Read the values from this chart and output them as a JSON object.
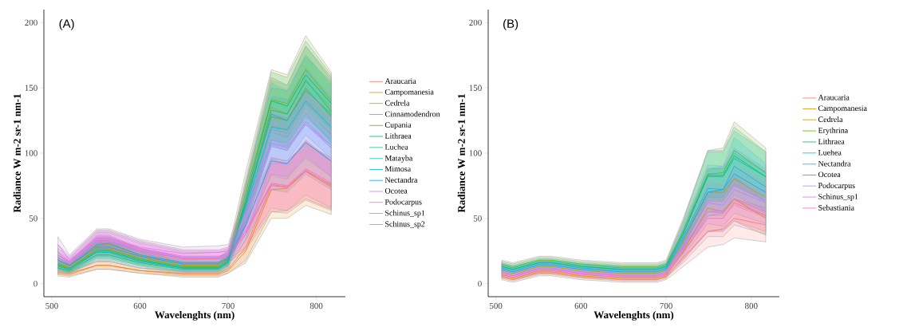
{
  "chart_data": [
    {
      "type": "line",
      "title": "(A)",
      "xlabel": "Wavelenghts (nm)",
      "ylabel": "Radiance W m-2 sr-1 nm-1",
      "legend": "right",
      "x": [
        507,
        520,
        551,
        565,
        600,
        649,
        689,
        700,
        720,
        749,
        767,
        788,
        817
      ],
      "xlim": [
        491,
        833
      ],
      "ylim": [
        -10,
        210
      ],
      "xticks": [
        500,
        600,
        700,
        800
      ],
      "yticks": [
        0,
        50,
        100,
        150,
        200
      ],
      "series": [
        {
          "name": "Araucaria",
          "color": "#f8766d",
          "values": [
            9,
            8,
            14,
            14,
            10,
            8,
            8,
            11,
            28,
            75,
            74,
            87,
            75
          ],
          "lower": [
            7,
            6,
            11,
            11,
            8,
            6,
            6,
            8,
            18,
            55,
            56,
            65,
            57
          ],
          "upper": [
            11,
            10,
            17,
            17,
            12,
            10,
            10,
            14,
            38,
            95,
            92,
            109,
            93
          ]
        },
        {
          "name": "Campomanesia",
          "color": "#e38900",
          "values": [
            8,
            7,
            14,
            14,
            10,
            7,
            7,
            10,
            25,
            72,
            73,
            86,
            74
          ],
          "lower": [
            6,
            5,
            11,
            11,
            8,
            5,
            5,
            8,
            16,
            50,
            50,
            60,
            53
          ],
          "upper": [
            10,
            9,
            17,
            17,
            12,
            9,
            9,
            12,
            34,
            92,
            92,
            110,
            94
          ]
        },
        {
          "name": "Cedrela",
          "color": "#c49a00",
          "values": [
            14,
            12,
            27,
            27,
            20,
            14,
            14,
            18,
            60,
            135,
            130,
            155,
            135
          ],
          "lower": [
            11,
            9,
            21,
            21,
            15,
            11,
            11,
            14,
            45,
            110,
            106,
            128,
            110
          ],
          "upper": [
            17,
            15,
            33,
            33,
            25,
            17,
            17,
            22,
            75,
            158,
            152,
            182,
            158
          ]
        },
        {
          "name": "Cinnamodendron",
          "color": "#99a800",
          "values": [
            16,
            13,
            29,
            30,
            22,
            16,
            16,
            20,
            70,
            141,
            138,
            164,
            140
          ],
          "lower": [
            12,
            10,
            24,
            24,
            17,
            12,
            12,
            15,
            54,
            118,
            115,
            138,
            118
          ],
          "upper": [
            20,
            16,
            36,
            36,
            27,
            20,
            20,
            25,
            86,
            164,
            160,
            190,
            162
          ]
        },
        {
          "name": "Cupania",
          "color": "#53b400",
          "values": [
            15,
            12,
            26,
            26,
            19,
            13,
            13,
            18,
            62,
            128,
            125,
            148,
            130
          ],
          "lower": [
            11,
            9,
            20,
            20,
            14,
            10,
            10,
            14,
            47,
            105,
            102,
            122,
            106
          ],
          "upper": [
            19,
            15,
            32,
            32,
            24,
            16,
            16,
            22,
            77,
            150,
            148,
            174,
            154
          ]
        },
        {
          "name": "Lithraea",
          "color": "#00bc56",
          "values": [
            14,
            11,
            25,
            25,
            18,
            12,
            12,
            17,
            65,
            140,
            136,
            160,
            138
          ],
          "lower": [
            11,
            8,
            19,
            19,
            14,
            9,
            9,
            13,
            50,
            116,
            112,
            134,
            114
          ],
          "upper": [
            17,
            14,
            31,
            31,
            22,
            15,
            15,
            21,
            80,
            162,
            158,
            186,
            160
          ]
        },
        {
          "name": "Luchea",
          "color": "#00c094",
          "values": [
            12,
            10,
            22,
            22,
            16,
            11,
            11,
            16,
            62,
            133,
            130,
            156,
            132
          ],
          "lower": [
            9,
            8,
            17,
            17,
            12,
            8,
            8,
            12,
            47,
            110,
            108,
            130,
            108
          ],
          "upper": [
            15,
            12,
            27,
            27,
            20,
            14,
            14,
            20,
            77,
            156,
            152,
            182,
            156
          ]
        },
        {
          "name": "Matayba",
          "color": "#00bfc4",
          "values": [
            13,
            11,
            24,
            24,
            17,
            12,
            12,
            17,
            60,
            130,
            125,
            150,
            128
          ],
          "lower": [
            10,
            8,
            18,
            18,
            13,
            9,
            9,
            13,
            45,
            106,
            102,
            124,
            104
          ],
          "upper": [
            16,
            14,
            30,
            30,
            21,
            15,
            15,
            21,
            75,
            154,
            148,
            176,
            152
          ]
        },
        {
          "name": "Mimosa",
          "color": "#00b6eb",
          "values": [
            18,
            14,
            30,
            31,
            22,
            16,
            16,
            20,
            58,
            120,
            118,
            140,
            120
          ],
          "lower": [
            14,
            11,
            23,
            23,
            17,
            12,
            12,
            15,
            43,
            96,
            94,
            114,
            96
          ],
          "upper": [
            22,
            17,
            37,
            37,
            27,
            20,
            20,
            25,
            73,
            144,
            142,
            166,
            144
          ]
        },
        {
          "name": "Nectandra",
          "color": "#06a4ff",
          "values": [
            18,
            14,
            28,
            28,
            21,
            15,
            15,
            19,
            45,
            94,
            92,
            108,
            94
          ],
          "lower": [
            14,
            11,
            21,
            21,
            16,
            11,
            11,
            14,
            33,
            72,
            70,
            84,
            72
          ],
          "upper": [
            22,
            17,
            35,
            35,
            26,
            19,
            19,
            24,
            57,
            116,
            114,
            132,
            116
          ]
        },
        {
          "name": "Ocotea",
          "color": "#a58aff",
          "values": [
            22,
            16,
            33,
            33,
            26,
            20,
            20,
            22,
            52,
            108,
            105,
            122,
            104
          ],
          "lower": [
            17,
            12,
            26,
            26,
            20,
            15,
            15,
            17,
            38,
            84,
            82,
            96,
            82
          ],
          "upper": [
            27,
            20,
            40,
            40,
            32,
            25,
            25,
            27,
            66,
            132,
            128,
            148,
            126
          ]
        },
        {
          "name": "Podocarpus",
          "color": "#df70f8",
          "values": [
            30,
            18,
            35,
            35,
            28,
            23,
            24,
            25,
            55,
            107,
            104,
            124,
            106
          ],
          "lower": [
            24,
            14,
            28,
            28,
            22,
            18,
            19,
            20,
            40,
            83,
            80,
            98,
            82
          ],
          "upper": [
            36,
            22,
            42,
            42,
            34,
            28,
            29,
            30,
            70,
            131,
            128,
            150,
            130
          ]
        },
        {
          "name": "Schinus_sp1",
          "color": "#fb61d7",
          "values": [
            24,
            17,
            34,
            34,
            27,
            21,
            21,
            23,
            40,
            77,
            75,
            88,
            77
          ],
          "lower": [
            18,
            13,
            27,
            27,
            21,
            16,
            16,
            18,
            28,
            58,
            56,
            68,
            58
          ],
          "upper": [
            30,
            21,
            41,
            41,
            33,
            26,
            26,
            28,
            52,
            96,
            94,
            108,
            96
          ]
        },
        {
          "name": "Schinus_sp2",
          "color": "#ff66a8",
          "values": [
            20,
            15,
            32,
            32,
            25,
            19,
            19,
            21,
            38,
            76,
            74,
            86,
            76
          ],
          "lower": [
            15,
            11,
            25,
            25,
            19,
            14,
            14,
            16,
            26,
            55,
            54,
            64,
            56
          ],
          "upper": [
            25,
            19,
            39,
            39,
            31,
            24,
            24,
            26,
            50,
            97,
            94,
            108,
            96
          ]
        }
      ]
    },
    {
      "type": "line",
      "title": "(B)",
      "xlabel": "Wavelenghts (nm)",
      "ylabel": "Radiance W m-2 sr-1 nm-1",
      "legend": "right",
      "x": [
        507,
        520,
        551,
        565,
        600,
        649,
        689,
        700,
        720,
        749,
        767,
        780,
        817
      ],
      "xlim": [
        491,
        833
      ],
      "ylim": [
        -10,
        210
      ],
      "xticks": [
        500,
        600,
        700,
        800
      ],
      "yticks": [
        0,
        50,
        100,
        150,
        200
      ],
      "series": [
        {
          "name": "Araucaria",
          "color": "#f8766d",
          "values": [
            5,
            3,
            8,
            8,
            5,
            3,
            3,
            5,
            20,
            40,
            42,
            50,
            45
          ],
          "lower": [
            3,
            1,
            6,
            6,
            3,
            1,
            1,
            3,
            13,
            28,
            30,
            35,
            32
          ],
          "upper": [
            8,
            6,
            11,
            11,
            8,
            6,
            6,
            8,
            27,
            52,
            54,
            65,
            58
          ]
        },
        {
          "name": "Campomanesia",
          "color": "#db8e00",
          "values": [
            6,
            4,
            9,
            9,
            6,
            4,
            4,
            6,
            25,
            58,
            55,
            65,
            50
          ],
          "lower": [
            4,
            2,
            7,
            7,
            4,
            2,
            2,
            4,
            18,
            40,
            40,
            48,
            37
          ],
          "upper": [
            9,
            7,
            12,
            12,
            9,
            7,
            7,
            9,
            32,
            70,
            70,
            82,
            63
          ]
        },
        {
          "name": "Cedrela",
          "color": "#aea200",
          "values": [
            10,
            8,
            13,
            13,
            10,
            8,
            8,
            10,
            32,
            70,
            70,
            80,
            66
          ],
          "lower": [
            8,
            6,
            11,
            11,
            8,
            6,
            6,
            8,
            23,
            52,
            52,
            60,
            51
          ],
          "upper": [
            13,
            11,
            16,
            16,
            13,
            11,
            11,
            13,
            41,
            88,
            88,
            100,
            85
          ]
        },
        {
          "name": "Erythrina",
          "color": "#64b200",
          "values": [
            15,
            13,
            18,
            18,
            15,
            13,
            13,
            15,
            40,
            84,
            85,
            102,
            85
          ],
          "lower": [
            13,
            11,
            16,
            16,
            13,
            11,
            11,
            13,
            30,
            66,
            66,
            80,
            66
          ],
          "upper": [
            18,
            16,
            21,
            21,
            18,
            16,
            16,
            18,
            50,
            102,
            104,
            124,
            104
          ]
        },
        {
          "name": "Lithraea",
          "color": "#00bd5c",
          "values": [
            13,
            11,
            16,
            16,
            13,
            11,
            11,
            13,
            38,
            83,
            83,
            98,
            82
          ],
          "lower": [
            11,
            9,
            14,
            14,
            11,
            9,
            9,
            11,
            28,
            64,
            64,
            76,
            63
          ],
          "upper": [
            16,
            14,
            19,
            19,
            16,
            14,
            14,
            16,
            48,
            102,
            102,
            120,
            101
          ]
        },
        {
          "name": "Luehea",
          "color": "#00c1a7",
          "values": [
            14,
            12,
            17,
            17,
            14,
            12,
            12,
            14,
            38,
            82,
            82,
            96,
            82
          ],
          "lower": [
            12,
            10,
            15,
            15,
            12,
            10,
            10,
            12,
            28,
            63,
            63,
            75,
            63
          ],
          "upper": [
            17,
            15,
            20,
            20,
            17,
            15,
            15,
            17,
            48,
            101,
            101,
            117,
            101
          ]
        },
        {
          "name": "Nectandra",
          "color": "#00bade",
          "values": [
            12,
            10,
            15,
            15,
            12,
            10,
            10,
            12,
            36,
            73,
            72,
            90,
            74
          ],
          "lower": [
            10,
            8,
            13,
            13,
            10,
            8,
            8,
            10,
            26,
            55,
            54,
            68,
            56
          ],
          "upper": [
            15,
            13,
            18,
            18,
            15,
            13,
            13,
            15,
            46,
            91,
            90,
            112,
            92
          ]
        },
        {
          "name": "Ocotea",
          "color": "#00a6ff",
          "values": [
            11,
            9,
            14,
            14,
            11,
            9,
            9,
            11,
            34,
            70,
            72,
            84,
            70
          ],
          "lower": [
            9,
            7,
            12,
            12,
            9,
            7,
            7,
            9,
            24,
            52,
            54,
            64,
            52
          ],
          "upper": [
            14,
            12,
            17,
            17,
            14,
            12,
            12,
            14,
            44,
            88,
            90,
            104,
            88
          ]
        },
        {
          "name": "Podocarpus",
          "color": "#b385ff",
          "values": [
            9,
            7,
            12,
            12,
            9,
            7,
            7,
            9,
            30,
            62,
            60,
            72,
            62
          ],
          "lower": [
            7,
            5,
            10,
            10,
            7,
            5,
            5,
            7,
            21,
            46,
            44,
            54,
            46
          ],
          "upper": [
            12,
            10,
            15,
            15,
            12,
            10,
            10,
            12,
            39,
            78,
            76,
            90,
            78
          ]
        },
        {
          "name": "Schinus_sp1",
          "color": "#ef67eb",
          "values": [
            8,
            6,
            11,
            11,
            8,
            6,
            6,
            8,
            28,
            55,
            56,
            65,
            55
          ],
          "lower": [
            6,
            4,
            9,
            9,
            6,
            4,
            4,
            6,
            19,
            40,
            41,
            48,
            40
          ],
          "upper": [
            11,
            9,
            14,
            14,
            11,
            9,
            9,
            11,
            37,
            70,
            71,
            82,
            70
          ]
        },
        {
          "name": "Sebastiania",
          "color": "#ff63b6",
          "values": [
            7,
            5,
            10,
            10,
            7,
            5,
            5,
            7,
            24,
            50,
            50,
            62,
            52
          ],
          "lower": [
            5,
            3,
            8,
            8,
            5,
            3,
            3,
            5,
            16,
            36,
            36,
            45,
            38
          ],
          "upper": [
            10,
            8,
            13,
            13,
            10,
            8,
            8,
            10,
            32,
            64,
            64,
            79,
            66
          ]
        }
      ]
    }
  ]
}
